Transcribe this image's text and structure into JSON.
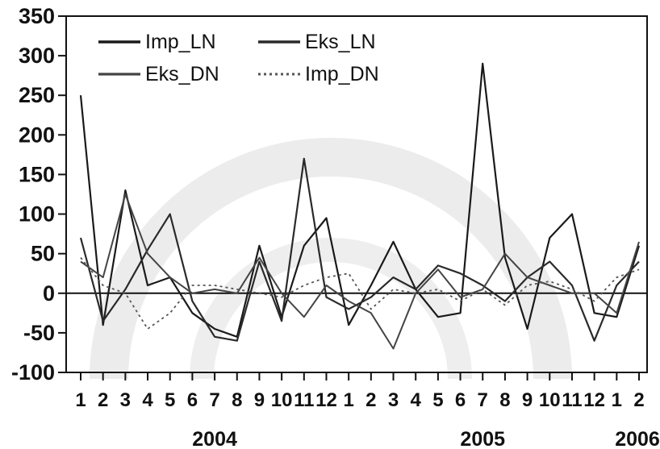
{
  "chart_data": {
    "type": "line",
    "title": "",
    "xlabel": "",
    "ylabel": "",
    "ylim": [
      -100,
      350
    ],
    "yticks": [
      -100,
      -50,
      0,
      50,
      100,
      150,
      200,
      250,
      300,
      350
    ],
    "ytick_labels": [
      "-100",
      "-50",
      "0",
      "50",
      "100",
      "150",
      "200",
      "250",
      "300",
      "350"
    ],
    "x_tick_labels": [
      "1",
      "2",
      "3",
      "4",
      "5",
      "6",
      "7",
      "8",
      "9",
      "10",
      "11",
      "12",
      "1",
      "2",
      "3",
      "4",
      "5",
      "6",
      "7",
      "8",
      "9",
      "10",
      "11",
      "12",
      "1",
      "2"
    ],
    "year_labels": [
      {
        "label": "2004",
        "month_index": 6
      },
      {
        "label": "2005",
        "month_index": 18
      },
      {
        "label": "2006",
        "month_index": 25
      }
    ],
    "legend_position": "top-left",
    "zero_line": true,
    "series": [
      {
        "name": "Imp_LN",
        "color": "#1a1a1a",
        "width": 2.2,
        "dash": "",
        "values": [
          250,
          -40,
          130,
          10,
          20,
          -25,
          -45,
          -55,
          60,
          -30,
          60,
          95,
          -40,
          10,
          65,
          5,
          -30,
          -25,
          290,
          45,
          -45,
          70,
          100,
          -25,
          -30,
          60
        ]
      },
      {
        "name": "Eks_LN",
        "color": "#2a2a2a",
        "width": 2.2,
        "dash": "",
        "values": [
          70,
          -35,
          5,
          55,
          100,
          -10,
          -55,
          -60,
          40,
          -35,
          170,
          -5,
          -20,
          -5,
          20,
          5,
          35,
          25,
          10,
          -10,
          20,
          40,
          10,
          -60,
          10,
          40
        ]
      },
      {
        "name": "Eks_DN",
        "color": "#444444",
        "width": 2.0,
        "dash": "",
        "values": [
          40,
          20,
          125,
          50,
          20,
          0,
          5,
          0,
          45,
          0,
          -30,
          10,
          -10,
          -25,
          -70,
          0,
          30,
          -5,
          5,
          50,
          20,
          10,
          0,
          0,
          -25,
          65
        ]
      },
      {
        "name": "Imp_DN",
        "color": "#555555",
        "width": 1.8,
        "dash": "3,4",
        "values": [
          45,
          10,
          0,
          -45,
          -25,
          10,
          10,
          5,
          0,
          -5,
          10,
          20,
          25,
          -20,
          5,
          0,
          5,
          -10,
          5,
          -15,
          10,
          15,
          5,
          -10,
          20,
          30
        ]
      }
    ]
  }
}
